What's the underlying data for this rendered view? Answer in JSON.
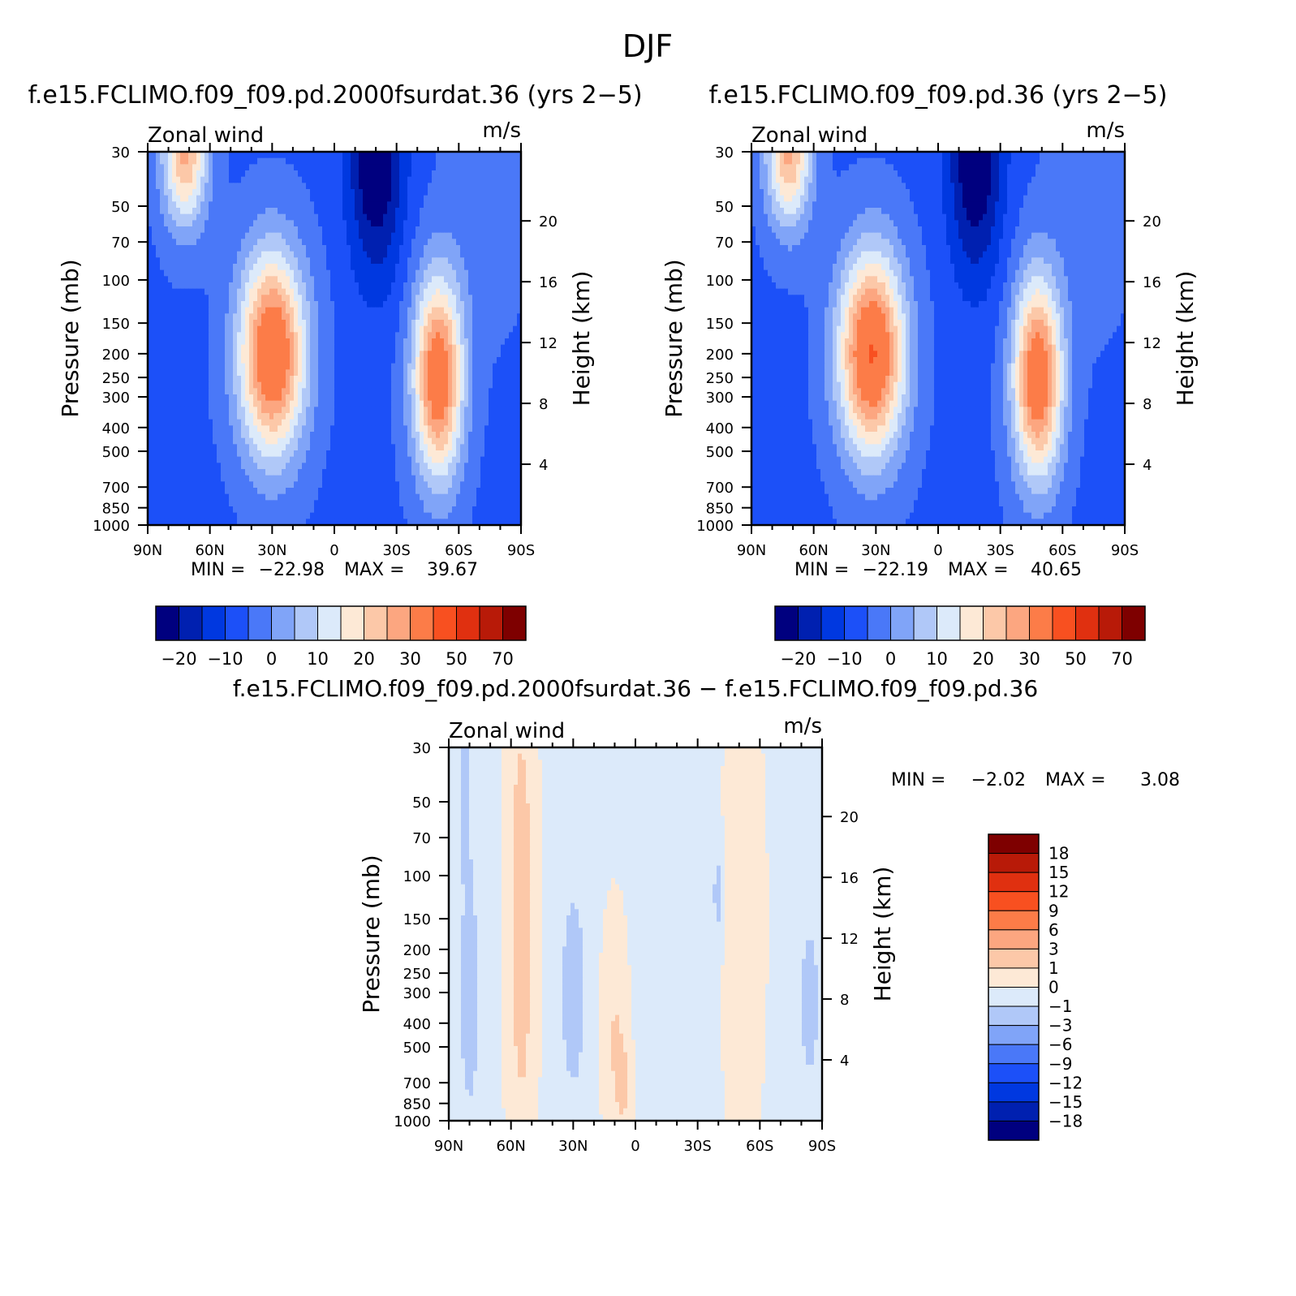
{
  "page_title": "DJF",
  "scale_items": {
    "panel": [
      "−20",
      "−10",
      "0",
      "10",
      "20",
      "30",
      "50",
      "70"
    ],
    "diff": [
      "18",
      "15",
      "12",
      "9",
      "6",
      "3",
      "1",
      "0",
      "−1",
      "−3",
      "−6",
      "−9",
      "−12",
      "−15",
      "−18"
    ]
  },
  "colormap": [
    "#00007f",
    "#0020b0",
    "#0038e0",
    "#1c50f8",
    "#4a78f8",
    "#80a4f8",
    "#b0c8f8",
    "#dceafa",
    "#fde9d6",
    "#fcc8a8",
    "#fca680",
    "#fc7c48",
    "#f85020",
    "#e03010",
    "#b81a08",
    "#7e0000"
  ],
  "panel_colormap": [
    "#00007f",
    "#0020b0",
    "#0038e0",
    "#1c50f8",
    "#4a78f8",
    "#80a4f8",
    "#b0c8f8",
    "#dceafa",
    "#fde9d6",
    "#fcc8a8",
    "#fca680",
    "#fc7c48",
    "#f85020",
    "#e03010",
    "#b81a08",
    "#7e0000"
  ],
  "chart_data": [
    {
      "type": "heatmap",
      "title": "f.e15.FCLIMO.f09_f09.pd.2000fsurdat.36 (yrs 2−5)",
      "subtitle_left": "Zonal wind",
      "units": "m/s",
      "xlabel": "",
      "ylabel": "Pressure (mb)",
      "ylabel_right": "Height (km)",
      "x_ticks": [
        "90N",
        "60N",
        "30N",
        "0",
        "30S",
        "60S",
        "90S"
      ],
      "y_ticks": [
        "30",
        "50",
        "70",
        "100",
        "150",
        "200",
        "250",
        "300",
        "400",
        "500",
        "700",
        "850",
        "1000"
      ],
      "y_ticks_right": [
        "20",
        "16",
        "12",
        "8",
        "4"
      ],
      "ylim": [
        1000,
        30
      ],
      "y_scale": "log",
      "stats": {
        "min_label": "MIN =",
        "min": "−22.98",
        "max_label": "MAX =",
        "max": "39.67"
      },
      "contour_levels": [
        -25,
        -20,
        -15,
        -10,
        -5,
        0,
        5,
        10,
        15,
        20,
        25,
        30,
        40,
        50,
        60,
        70,
        80
      ],
      "colorbar_labels": [
        "−20",
        "−10",
        "0",
        "10",
        "20",
        "30",
        "50",
        "70"
      ],
      "jets": [
        {
          "lat": 30,
          "pressure": 200,
          "speed": 39.67
        },
        {
          "lat": -50,
          "pressure": 250,
          "speed": 37
        },
        {
          "lat": -20,
          "pressure": 30,
          "speed": -22.98
        }
      ]
    },
    {
      "type": "heatmap",
      "title": "f.e15.FCLIMO.f09_f09.pd.36 (yrs 2−5)",
      "subtitle_left": "Zonal wind",
      "units": "m/s",
      "xlabel": "",
      "ylabel": "Pressure (mb)",
      "ylabel_right": "Height (km)",
      "x_ticks": [
        "90N",
        "60N",
        "30N",
        "0",
        "30S",
        "60S",
        "90S"
      ],
      "y_ticks": [
        "30",
        "50",
        "70",
        "100",
        "150",
        "200",
        "250",
        "300",
        "400",
        "500",
        "700",
        "850",
        "1000"
      ],
      "y_ticks_right": [
        "20",
        "16",
        "12",
        "8",
        "4"
      ],
      "ylim": [
        1000,
        30
      ],
      "y_scale": "log",
      "stats": {
        "min_label": "MIN =",
        "min": "−22.19",
        "max_label": "MAX =",
        "max": "40.65"
      },
      "contour_levels": [
        -25,
        -20,
        -15,
        -10,
        -5,
        0,
        5,
        10,
        15,
        20,
        25,
        30,
        40,
        50,
        60,
        70,
        80
      ],
      "colorbar_labels": [
        "−20",
        "−10",
        "0",
        "10",
        "20",
        "30",
        "50",
        "70"
      ],
      "jets": [
        {
          "lat": 32,
          "pressure": 200,
          "speed": 40.65
        },
        {
          "lat": -48,
          "pressure": 250,
          "speed": 37
        },
        {
          "lat": -18,
          "pressure": 30,
          "speed": -22.19
        }
      ]
    },
    {
      "type": "heatmap",
      "title": "f.e15.FCLIMO.f09_f09.pd.2000fsurdat.36 − f.e15.FCLIMO.f09_f09.pd.36",
      "subtitle_left": "Zonal wind",
      "units": "m/s",
      "xlabel": "",
      "ylabel": "Pressure (mb)",
      "ylabel_right": "Height (km)",
      "x_ticks": [
        "90N",
        "60N",
        "30N",
        "0",
        "30S",
        "60S",
        "90S"
      ],
      "y_ticks": [
        "30",
        "50",
        "70",
        "100",
        "150",
        "200",
        "250",
        "300",
        "400",
        "500",
        "700",
        "850",
        "1000"
      ],
      "y_ticks_right": [
        "20",
        "16",
        "12",
        "8",
        "4"
      ],
      "ylim": [
        1000,
        30
      ],
      "y_scale": "log",
      "stats": {
        "min_label": "MIN =",
        "min": "−2.02",
        "max_label": "MAX =",
        "max": "3.08"
      },
      "contour_levels": [
        -21,
        -18,
        -15,
        -12,
        -9,
        -6,
        -3,
        -1,
        0,
        1,
        3,
        6,
        9,
        12,
        15,
        18,
        21
      ],
      "colorbar_labels": [
        "18",
        "15",
        "12",
        "9",
        "6",
        "3",
        "1",
        "0",
        "−1",
        "−3",
        "−6",
        "−9",
        "−12",
        "−15",
        "−18"
      ]
    }
  ]
}
